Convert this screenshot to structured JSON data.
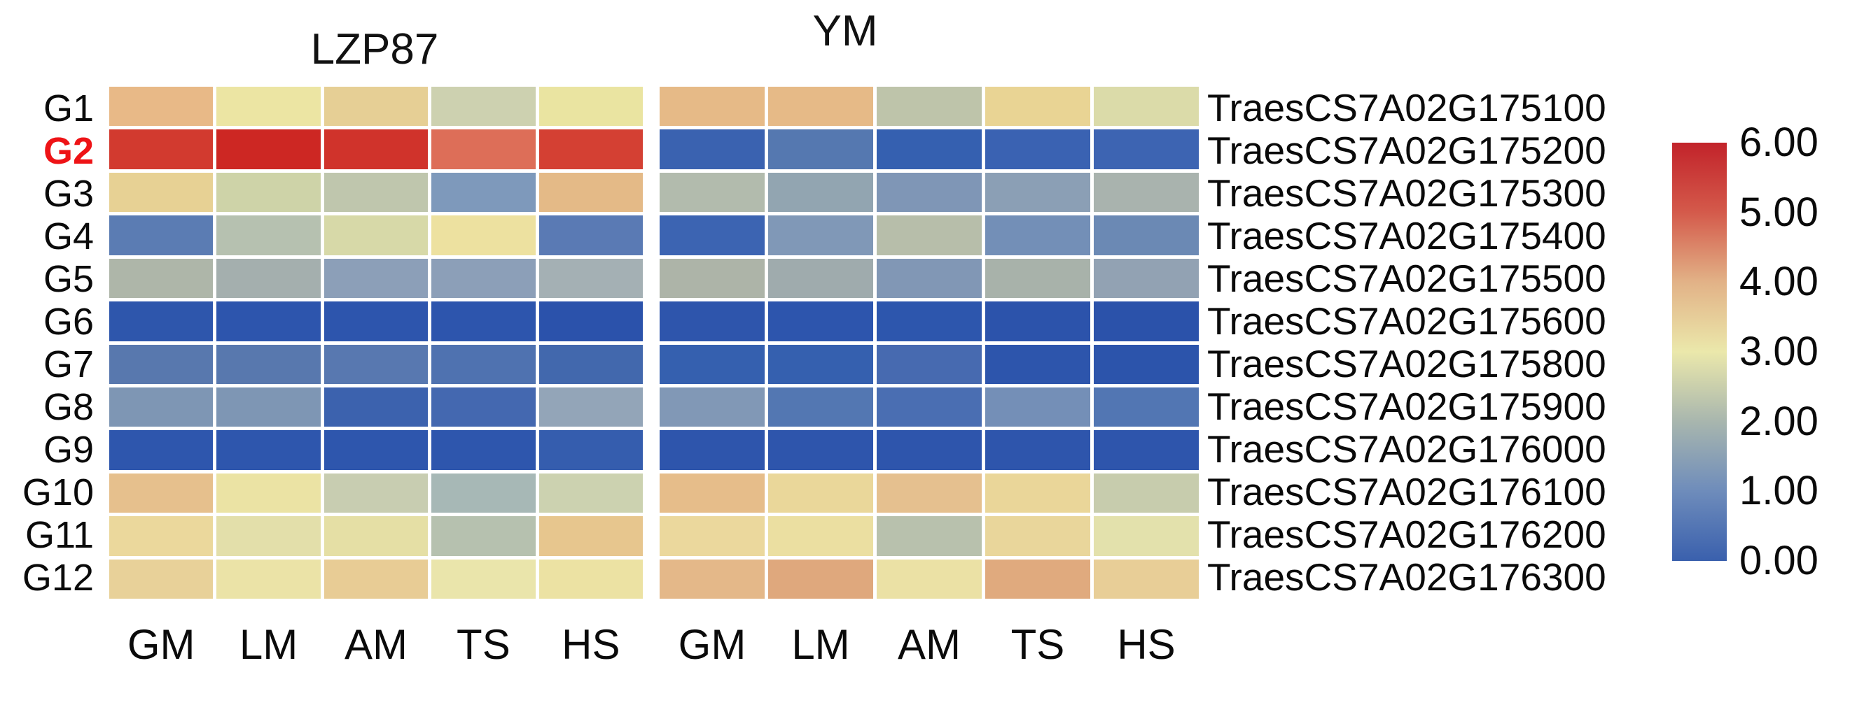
{
  "chart_data": {
    "type": "heatmap",
    "rows": [
      "G1",
      "G2",
      "G3",
      "G4",
      "G5",
      "G6",
      "G7",
      "G8",
      "G9",
      "G10",
      "G11",
      "G12"
    ],
    "row_genes": [
      "TraesCS7A02G175100",
      "TraesCS7A02G175200",
      "TraesCS7A02G175300",
      "TraesCS7A02G175400",
      "TraesCS7A02G175500",
      "TraesCS7A02G175600",
      "TraesCS7A02G175800",
      "TraesCS7A02G175900",
      "TraesCS7A02G176000",
      "TraesCS7A02G176100",
      "TraesCS7A02G176200",
      "TraesCS7A02G176300"
    ],
    "columns": [
      "GM",
      "LM",
      "AM",
      "TS",
      "HS"
    ],
    "highlighted_row": "G2",
    "series": [
      {
        "name": "LZP87",
        "values": [
          [
            4.0,
            3.0,
            3.5,
            2.4,
            3.0
          ],
          [
            5.6,
            5.9,
            5.7,
            4.9,
            5.5
          ],
          [
            3.5,
            2.5,
            2.2,
            1.2,
            3.9
          ],
          [
            0.8,
            2.1,
            2.7,
            3.1,
            0.7
          ],
          [
            2.0,
            1.9,
            1.5,
            1.5,
            1.8
          ],
          [
            0.1,
            0.1,
            0.1,
            0.1,
            0.1
          ],
          [
            0.7,
            0.7,
            0.7,
            0.6,
            0.4
          ],
          [
            1.2,
            1.2,
            0.3,
            0.5,
            1.5
          ],
          [
            0.1,
            0.1,
            0.1,
            0.1,
            0.2
          ],
          [
            3.8,
            3.0,
            2.4,
            1.9,
            2.4
          ],
          [
            3.3,
            2.9,
            2.9,
            2.1,
            3.7
          ],
          [
            3.4,
            3.0,
            3.5,
            3.0,
            3.1
          ]
        ]
      },
      {
        "name": "YM",
        "values": [
          [
            3.9,
            3.9,
            2.2,
            3.4,
            2.8
          ],
          [
            0.3,
            0.7,
            0.3,
            0.3,
            0.4
          ],
          [
            2.1,
            1.6,
            1.3,
            1.5,
            1.9
          ],
          [
            0.4,
            1.3,
            2.1,
            1.1,
            1.0
          ],
          [
            2.0,
            1.8,
            1.3,
            1.9,
            1.5
          ],
          [
            0.1,
            0.1,
            0.1,
            0.1,
            0.1
          ],
          [
            0.3,
            0.3,
            0.5,
            0.1,
            0.1
          ],
          [
            1.3,
            0.7,
            0.6,
            1.1,
            0.7
          ],
          [
            0.1,
            0.1,
            0.1,
            0.1,
            0.1
          ],
          [
            3.9,
            3.3,
            3.8,
            3.3,
            2.4
          ],
          [
            3.3,
            3.1,
            2.1,
            3.3,
            2.9
          ],
          [
            4.0,
            4.3,
            3.0,
            4.2,
            3.4
          ]
        ]
      }
    ],
    "colorbar": {
      "min": 0.0,
      "max": 6.0,
      "tick_labels": [
        "6.00",
        "5.00",
        "4.00",
        "3.00",
        "2.00",
        "1.00",
        "0.00"
      ],
      "position": "right"
    }
  },
  "render": {
    "highlight_color": "#ee1316",
    "gradient_top_to_bottom": [
      "#c2232a",
      "#d45a4b",
      "#e2b287",
      "#ebe8ab",
      "#a8b6ae",
      "#6e8cbb",
      "#3a60ad"
    ],
    "cell_colors": [
      [
        [
          "#e8b987",
          "#ece5a3",
          "#e6cf95",
          "#cdd1b0",
          "#eae4a1"
        ],
        [
          "#d23a2f",
          "#cd2723",
          "#d0332b",
          "#dd6e58",
          "#d44033"
        ],
        [
          "#e7d194",
          "#ced3a8",
          "#bfc6ad",
          "#7e99bb",
          "#e4ba87"
        ],
        [
          "#5b7cb3",
          "#b6c1b0",
          "#d7d9a8",
          "#ede1a0",
          "#5a7ab4"
        ],
        [
          "#aeb6a9",
          "#a4afae",
          "#8c9fb8",
          "#8c9fb8",
          "#a4b0b4"
        ],
        [
          "#2e56ac",
          "#2d55ad",
          "#2d55ad",
          "#2d55ad",
          "#2b52ab"
        ],
        [
          "#5878ae",
          "#5878ae",
          "#5878b0",
          "#4f72b0",
          "#4268ad"
        ],
        [
          "#7e96b4",
          "#7e96b4",
          "#3c62ae",
          "#4468b0",
          "#93a5b8"
        ],
        [
          "#2e56ad",
          "#2e56ad",
          "#2e56ad",
          "#2e56ad",
          "#355dae"
        ],
        [
          "#e6c08d",
          "#ebe3a4",
          "#c8cdb1",
          "#a7b8b6",
          "#ccd2b0"
        ],
        [
          "#ebd89c",
          "#e3dfaa",
          "#e5dfa5",
          "#b6c1af",
          "#e7c68e"
        ],
        [
          "#e8d199",
          "#ebe3a7",
          "#e8cc95",
          "#eae5ab",
          "#ece2a3"
        ]
      ],
      [
        [
          "#e6ba87",
          "#e6ba87",
          "#bec4aa",
          "#e9d494",
          "#dbdba9"
        ],
        [
          "#3a62b0",
          "#5578b0",
          "#3560b0",
          "#3a62b2",
          "#3d64b2"
        ],
        [
          "#b2bbad",
          "#92a5b1",
          "#7f96b6",
          "#8b9fb5",
          "#a9b3ae"
        ],
        [
          "#3c64b2",
          "#8098b7",
          "#b7beaa",
          "#738fb7",
          "#6b89b4"
        ],
        [
          "#adb4a8",
          "#9fabad",
          "#8197b5",
          "#a8b2aa",
          "#92a2b3"
        ],
        [
          "#2e55ac",
          "#2d55ad",
          "#2d56ad",
          "#2c53ab",
          "#2b52aa"
        ],
        [
          "#3560af",
          "#3560af",
          "#476ab0",
          "#2d55ac",
          "#2c54ab"
        ],
        [
          "#8198b6",
          "#5377b2",
          "#4a6eb2",
          "#748fb7",
          "#5276b3"
        ],
        [
          "#2e55ac",
          "#2e55ac",
          "#2e55ac",
          "#2e55ac",
          "#2e55ac"
        ],
        [
          "#e6bd8a",
          "#ead79a",
          "#e5c08f",
          "#ead699",
          "#c7ccad"
        ],
        [
          "#ebd89d",
          "#ebdfa1",
          "#b8c1ad",
          "#e9d69b",
          "#e3e1ac"
        ],
        [
          "#e4b889",
          "#dfa87d",
          "#ebe1a5",
          "#e0aa7e",
          "#e8ce97"
        ]
      ]
    ]
  }
}
